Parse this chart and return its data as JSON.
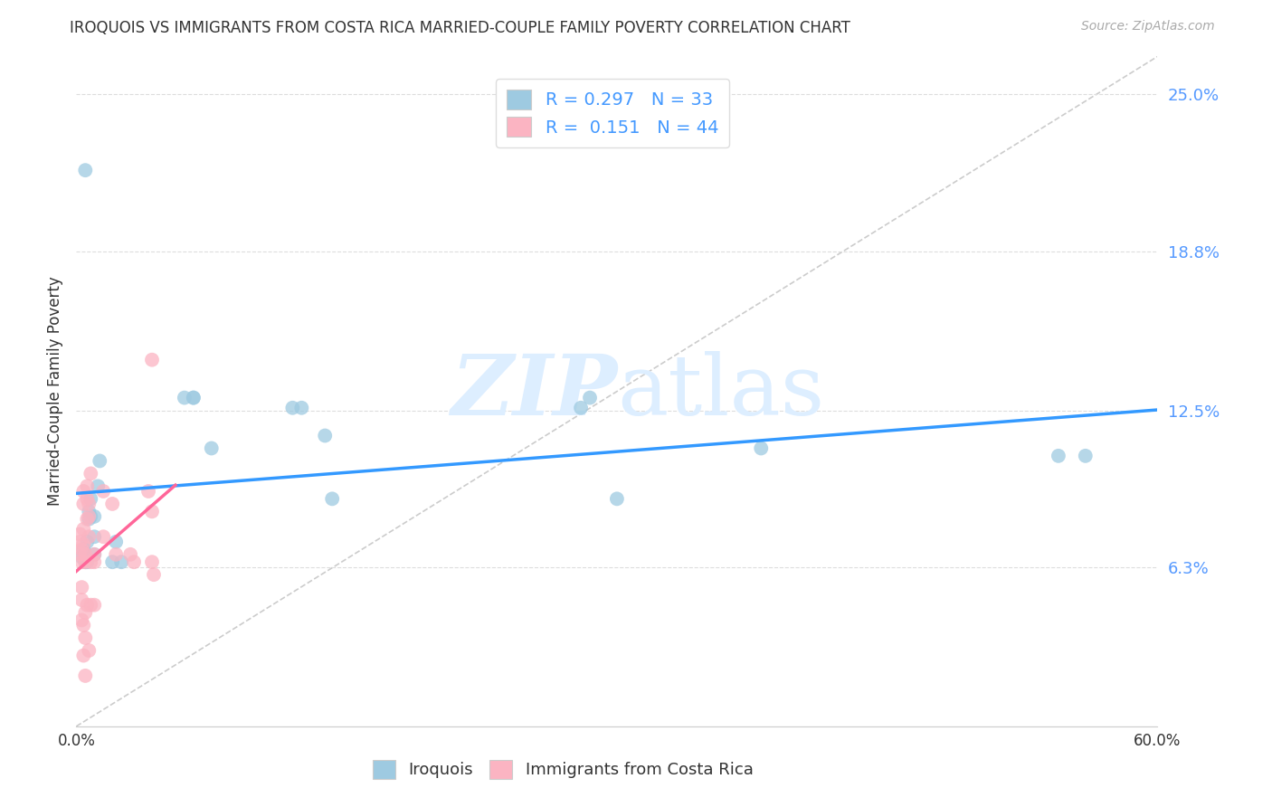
{
  "title": "IROQUOIS VS IMMIGRANTS FROM COSTA RICA MARRIED-COUPLE FAMILY POVERTY CORRELATION CHART",
  "source": "Source: ZipAtlas.com",
  "ylabel": "Married-Couple Family Poverty",
  "xlim": [
    0.0,
    0.6
  ],
  "ylim": [
    0.0,
    0.265
  ],
  "yticks": [
    0.063,
    0.125,
    0.188,
    0.25
  ],
  "ytick_labels": [
    "6.3%",
    "12.5%",
    "18.8%",
    "25.0%"
  ],
  "xticks": [
    0.0,
    0.1,
    0.2,
    0.3,
    0.4,
    0.5,
    0.6
  ],
  "xtick_labels": [
    "0.0%",
    "",
    "",
    "",
    "",
    "",
    "60.0%"
  ],
  "legend_R1": "0.297",
  "legend_N1": "33",
  "legend_R2": "0.151",
  "legend_N2": "44",
  "color_blue": "#9ecae1",
  "color_pink": "#fbb4c2",
  "regression_blue_color": "#3399ff",
  "regression_pink_color": "#ff6699",
  "diagonal_color": "#cccccc",
  "watermark_color": "#ddeeff",
  "iroquois_x": [
    0.003,
    0.004,
    0.005,
    0.005,
    0.006,
    0.006,
    0.007,
    0.007,
    0.008,
    0.008,
    0.01,
    0.01,
    0.01,
    0.012,
    0.013,
    0.02,
    0.022,
    0.025,
    0.06,
    0.065,
    0.065,
    0.075,
    0.12,
    0.125,
    0.138,
    0.142,
    0.28,
    0.285,
    0.3,
    0.38,
    0.545,
    0.56,
    0.005
  ],
  "iroquois_y": [
    0.067,
    0.07,
    0.065,
    0.068,
    0.073,
    0.065,
    0.082,
    0.085,
    0.083,
    0.09,
    0.075,
    0.083,
    0.068,
    0.095,
    0.105,
    0.065,
    0.073,
    0.065,
    0.13,
    0.13,
    0.13,
    0.11,
    0.126,
    0.126,
    0.115,
    0.09,
    0.126,
    0.13,
    0.09,
    0.11,
    0.107,
    0.107,
    0.22
  ],
  "costa_rica_x": [
    0.002,
    0.002,
    0.002,
    0.003,
    0.003,
    0.003,
    0.003,
    0.003,
    0.004,
    0.004,
    0.004,
    0.004,
    0.004,
    0.004,
    0.005,
    0.005,
    0.005,
    0.005,
    0.005,
    0.006,
    0.006,
    0.006,
    0.006,
    0.007,
    0.007,
    0.007,
    0.007,
    0.008,
    0.008,
    0.008,
    0.01,
    0.01,
    0.01,
    0.015,
    0.015,
    0.02,
    0.022,
    0.03,
    0.032,
    0.04,
    0.042,
    0.042,
    0.042,
    0.043
  ],
  "costa_rica_y": [
    0.068,
    0.073,
    0.076,
    0.07,
    0.065,
    0.055,
    0.05,
    0.042,
    0.078,
    0.072,
    0.088,
    0.093,
    0.04,
    0.028,
    0.065,
    0.068,
    0.045,
    0.035,
    0.02,
    0.082,
    0.09,
    0.095,
    0.048,
    0.088,
    0.083,
    0.075,
    0.03,
    0.1,
    0.065,
    0.048,
    0.068,
    0.065,
    0.048,
    0.093,
    0.075,
    0.088,
    0.068,
    0.068,
    0.065,
    0.093,
    0.085,
    0.145,
    0.065,
    0.06
  ]
}
